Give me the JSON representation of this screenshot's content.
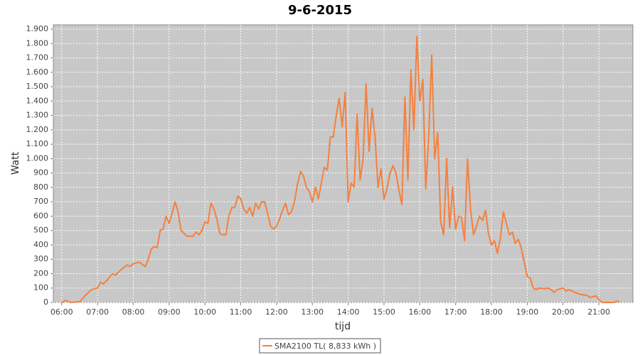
{
  "chart_data": {
    "type": "line",
    "title": "9-6-2015",
    "x_label": "tijd",
    "y_label": "Watt",
    "x": [
      "06:00",
      "06:07",
      "06:15",
      "06:30",
      "06:40",
      "06:50",
      "07:00",
      "07:05",
      "07:10",
      "07:15",
      "07:25",
      "07:30",
      "07:40",
      "07:50",
      "07:55",
      "08:00",
      "08:10",
      "08:20",
      "08:25",
      "08:30",
      "08:35",
      "08:40",
      "08:45",
      "08:50",
      "08:55",
      "09:00",
      "09:05",
      "09:10",
      "09:15",
      "09:20",
      "09:30",
      "09:40",
      "09:45",
      "09:50",
      "09:55",
      "10:00",
      "10:05",
      "10:10",
      "10:15",
      "10:20",
      "10:25",
      "10:30",
      "10:35",
      "10:40",
      "10:45",
      "10:50",
      "10:55",
      "11:00",
      "11:05",
      "11:10",
      "11:15",
      "11:20",
      "11:25",
      "11:30",
      "11:35",
      "11:40",
      "11:45",
      "11:50",
      "11:55",
      "12:00",
      "12:05",
      "12:10",
      "12:15",
      "12:20",
      "12:25",
      "12:30",
      "12:35",
      "12:40",
      "12:45",
      "12:50",
      "12:55",
      "13:00",
      "13:05",
      "13:10",
      "13:15",
      "13:20",
      "13:25",
      "13:30",
      "13:35",
      "13:40",
      "13:45",
      "13:50",
      "13:55",
      "14:00",
      "14:05",
      "14:10",
      "14:15",
      "14:20",
      "14:25",
      "14:30",
      "14:35",
      "14:40",
      "14:45",
      "14:50",
      "14:55",
      "15:00",
      "15:05",
      "15:10",
      "15:15",
      "15:20",
      "15:25",
      "15:30",
      "15:35",
      "15:40",
      "15:45",
      "15:50",
      "15:55",
      "16:00",
      "16:05",
      "16:10",
      "16:15",
      "16:20",
      "16:25",
      "16:30",
      "16:35",
      "16:40",
      "16:45",
      "16:50",
      "16:55",
      "17:00",
      "17:05",
      "17:10",
      "17:15",
      "17:20",
      "17:25",
      "17:30",
      "17:35",
      "17:40",
      "17:45",
      "17:50",
      "17:55",
      "18:00",
      "18:05",
      "18:10",
      "18:15",
      "18:20",
      "18:25",
      "18:30",
      "18:35",
      "18:40",
      "18:45",
      "18:50",
      "18:55",
      "19:00",
      "19:05",
      "19:10",
      "19:15",
      "19:20",
      "19:30",
      "19:35",
      "19:40",
      "19:45",
      "19:50",
      "20:00",
      "20:05",
      "20:10",
      "20:20",
      "20:30",
      "20:40",
      "20:45",
      "20:55",
      "21:00",
      "21:05",
      "21:25",
      "21:30",
      "21:35"
    ],
    "series": [
      {
        "name": "SMA2100 TL( 8,833 kWh )",
        "color": "#f5803e",
        "values": [
          0,
          15,
          0,
          5,
          50,
          90,
          100,
          140,
          130,
          150,
          200,
          190,
          230,
          260,
          250,
          270,
          280,
          250,
          300,
          370,
          390,
          380,
          500,
          510,
          600,
          550,
          620,
          700,
          630,
          500,
          460,
          460,
          490,
          470,
          500,
          560,
          550,
          690,
          650,
          580,
          480,
          470,
          470,
          600,
          660,
          660,
          740,
          720,
          650,
          620,
          660,
          600,
          690,
          650,
          700,
          700,
          620,
          530,
          510,
          530,
          580,
          640,
          690,
          610,
          630,
          700,
          820,
          910,
          880,
          800,
          770,
          700,
          800,
          720,
          830,
          940,
          920,
          1150,
          1150,
          1300,
          1420,
          1220,
          1460,
          700,
          830,
          800,
          1310,
          850,
          1000,
          1520,
          1050,
          1350,
          1150,
          800,
          930,
          720,
          790,
          900,
          950,
          900,
          780,
          680,
          1430,
          850,
          1620,
          1200,
          1850,
          1400,
          1550,
          790,
          1150,
          1720,
          1000,
          1180,
          560,
          470,
          1000,
          520,
          800,
          510,
          600,
          590,
          430,
          1000,
          650,
          470,
          530,
          600,
          570,
          640,
          480,
          400,
          430,
          340,
          450,
          630,
          550,
          470,
          490,
          410,
          440,
          380,
          280,
          180,
          170,
          100,
          90,
          100,
          95,
          100,
          90,
          70,
          90,
          100,
          80,
          90,
          70,
          55,
          50,
          35,
          45,
          20,
          0,
          0,
          10,
          0
        ]
      }
    ],
    "xlim": [
      "05:46",
      "21:57"
    ],
    "xticks": [
      "06:00",
      "07:00",
      "08:00",
      "09:00",
      "10:00",
      "11:00",
      "12:00",
      "13:00",
      "14:00",
      "15:00",
      "16:00",
      "17:00",
      "18:00",
      "19:00",
      "20:00",
      "21:00"
    ],
    "ylim": [
      0,
      1930
    ],
    "yticks": [
      0,
      100,
      200,
      300,
      400,
      500,
      600,
      700,
      800,
      900,
      {
        "value": 1000,
        "label": "1.000"
      },
      {
        "value": 1100,
        "label": "1.100"
      },
      {
        "value": 1200,
        "label": "1.200"
      },
      {
        "value": 1300,
        "label": "1.300"
      },
      {
        "value": 1400,
        "label": "1.400"
      },
      {
        "value": 1500,
        "label": "1.500"
      },
      {
        "value": 1600,
        "label": "1.600"
      },
      {
        "value": 1700,
        "label": "1.700"
      },
      {
        "value": 1800,
        "label": "1.800"
      },
      {
        "value": 1900,
        "label": "1.900"
      }
    ],
    "grid": true,
    "legend": "bottom"
  }
}
